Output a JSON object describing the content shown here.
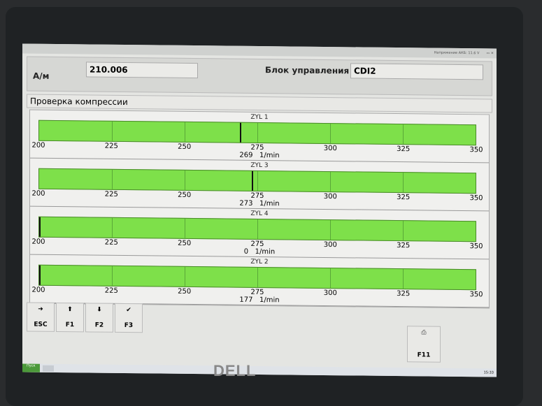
{
  "titlebar": {
    "battery": "Напряжение АКБ: 11.6 V"
  },
  "header": {
    "am_label": "А/м",
    "am_value": "210.006",
    "ecu_label": "Блок управления",
    "ecu_value": "CDI2"
  },
  "section_title": "Проверка компрессии",
  "scale": {
    "min": 200,
    "max": 350,
    "ticks": [
      "200",
      "225",
      "250",
      "275",
      "300",
      "325",
      "350"
    ]
  },
  "unit": "1/min",
  "gauges": [
    {
      "name": "ZYL 1",
      "value": 269
    },
    {
      "name": "ZYL 3",
      "value": 273
    },
    {
      "name": "ZYL 4",
      "value": 0
    },
    {
      "name": "ZYL 2",
      "value": 177
    }
  ],
  "buttons": [
    {
      "label": "ESC",
      "icon": "exit-icon",
      "glyph": "➜"
    },
    {
      "label": "F1",
      "icon": "arrow-up-icon",
      "glyph": "⬆"
    },
    {
      "label": "F2",
      "icon": "arrow-down-icon",
      "glyph": "⬇"
    },
    {
      "label": "F3",
      "icon": "check-icon",
      "glyph": "✔"
    }
  ],
  "f11": {
    "label": "F11",
    "icon": "print-icon",
    "glyph": "⎙"
  },
  "taskbar": {
    "start": "Пуск",
    "clock": "15:33"
  },
  "brand": "DELL",
  "colors": {
    "bar": "#7ee04a",
    "marker": "#111111"
  }
}
